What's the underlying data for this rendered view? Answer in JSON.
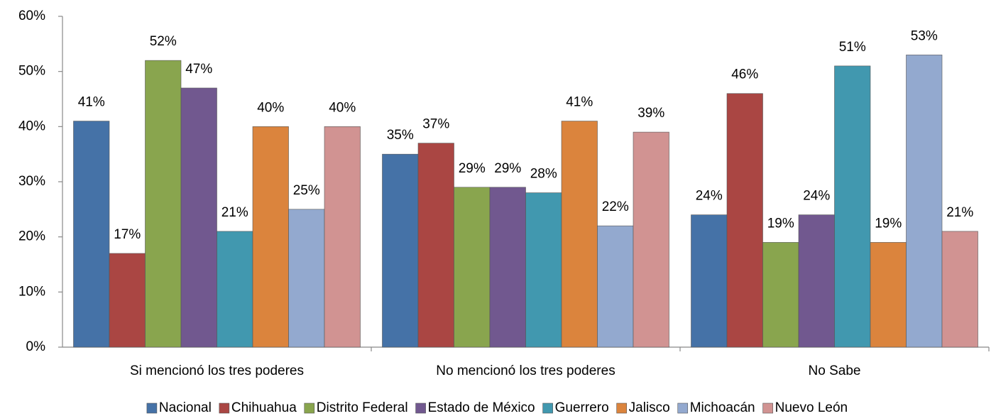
{
  "chart_data": {
    "type": "bar",
    "categories": [
      "Si mencionó los tres poderes",
      "No mencionó los tres poderes",
      "No Sabe"
    ],
    "series": [
      {
        "name": "Nacional",
        "color": "#4572a7",
        "values": [
          41,
          35,
          24
        ],
        "value_labels": [
          "41%",
          "35%",
          "24%"
        ]
      },
      {
        "name": "Chihuahua",
        "color": "#aa4643",
        "values": [
          17,
          37,
          46
        ],
        "value_labels": [
          "17%",
          "37%",
          "46%"
        ]
      },
      {
        "name": "Distrito Federal",
        "color": "#89a54e",
        "values": [
          52,
          29,
          19
        ],
        "value_labels": [
          "52%",
          "29%",
          "19%"
        ]
      },
      {
        "name": "Estado de México",
        "color": "#71588f",
        "values": [
          47,
          29,
          24
        ],
        "value_labels": [
          "47%",
          "29%",
          "24%"
        ]
      },
      {
        "name": "Guerrero",
        "color": "#4198af",
        "values": [
          21,
          28,
          51
        ],
        "value_labels": [
          "21%",
          "28%",
          "51%"
        ]
      },
      {
        "name": "Jalisco",
        "color": "#db843d",
        "values": [
          40,
          41,
          19
        ],
        "value_labels": [
          "40%",
          "41%",
          "19%"
        ]
      },
      {
        "name": "Michoacán",
        "color": "#93a9cf",
        "values": [
          25,
          22,
          53
        ],
        "value_labels": [
          "25%",
          "22%",
          "53%"
        ]
      },
      {
        "name": "Nuevo León",
        "color": "#d19392",
        "values": [
          40,
          39,
          21
        ],
        "value_labels": [
          "40%",
          "39%",
          "21%"
        ]
      }
    ],
    "ylim": [
      0,
      60
    ],
    "yticks": [
      {
        "value": 0,
        "label": "0%"
      },
      {
        "value": 10,
        "label": "10%"
      },
      {
        "value": 20,
        "label": "20%"
      },
      {
        "value": 30,
        "label": "30%"
      },
      {
        "value": 40,
        "label": "40%"
      },
      {
        "value": 50,
        "label": "50%"
      },
      {
        "value": 60,
        "label": "60%"
      }
    ],
    "legend": "bottom"
  }
}
